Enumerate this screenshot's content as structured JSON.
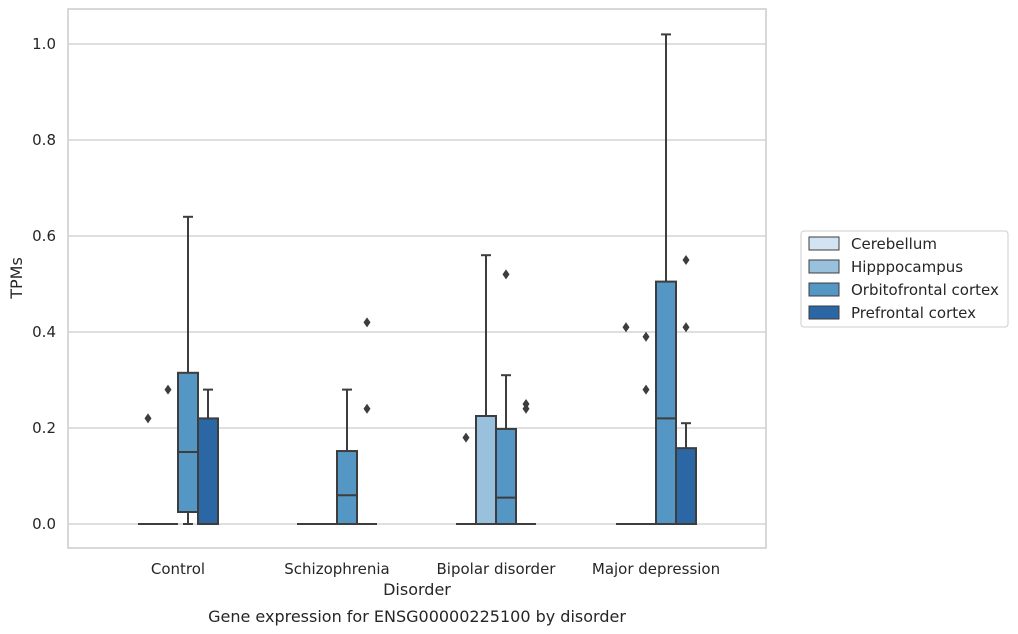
{
  "chart_data": {
    "type": "box",
    "title": "Gene expression for ENSG00000225100 by disorder",
    "xlabel": "Disorder",
    "ylabel": "TPMs",
    "ylim": [
      -0.05,
      1.07
    ],
    "yticks": [
      "0.0",
      "0.2",
      "0.4",
      "0.6",
      "0.8",
      "1.0"
    ],
    "categories": [
      "Control",
      "Schizophrenia",
      "Bipolar disorder",
      "Major depression"
    ],
    "grid": "horizontal",
    "legend_position": "right",
    "series": [
      {
        "name": "Cerebellum",
        "color": "#d4e3f1",
        "boxes": [
          {
            "category": "Control",
            "whisker_low": 0,
            "q1": 0,
            "median": 0,
            "q3": 0,
            "whisker_high": 0,
            "outliers": [
              0.22
            ]
          },
          {
            "category": "Schizophrenia",
            "whisker_low": 0,
            "q1": 0,
            "median": 0,
            "q3": 0,
            "whisker_high": 0,
            "outliers": []
          },
          {
            "category": "Bipolar disorder",
            "whisker_low": 0,
            "q1": 0,
            "median": 0,
            "q3": 0,
            "whisker_high": 0,
            "outliers": [
              0.18
            ]
          },
          {
            "category": "Major depression",
            "whisker_low": 0,
            "q1": 0,
            "median": 0,
            "q3": 0,
            "whisker_high": 0,
            "outliers": [
              0.41
            ]
          }
        ]
      },
      {
        "name": "Hipppocampus",
        "color": "#99c0dc",
        "boxes": [
          {
            "category": "Control",
            "whisker_low": 0,
            "q1": 0,
            "median": 0,
            "q3": 0,
            "whisker_high": 0,
            "outliers": [
              0.28
            ]
          },
          {
            "category": "Schizophrenia",
            "whisker_low": 0,
            "q1": 0,
            "median": 0,
            "q3": 0,
            "whisker_high": 0,
            "outliers": []
          },
          {
            "category": "Bipolar disorder",
            "whisker_low": 0,
            "q1": 0,
            "median": 0,
            "q3": 0.225,
            "whisker_high": 0.56,
            "outliers": []
          },
          {
            "category": "Major depression",
            "whisker_low": 0,
            "q1": 0,
            "median": 0,
            "q3": 0,
            "whisker_high": 0,
            "outliers": [
              0.39,
              0.28
            ]
          }
        ]
      },
      {
        "name": "Orbitofrontal cortex",
        "color": "#5496c4",
        "boxes": [
          {
            "category": "Control",
            "whisker_low": 0,
            "q1": 0.025,
            "median": 0.15,
            "q3": 0.315,
            "whisker_high": 0.64,
            "outliers": []
          },
          {
            "category": "Schizophrenia",
            "whisker_low": 0,
            "q1": 0,
            "median": 0.06,
            "q3": 0.152,
            "whisker_high": 0.28,
            "outliers": []
          },
          {
            "category": "Bipolar disorder",
            "whisker_low": 0,
            "q1": 0,
            "median": 0.055,
            "q3": 0.198,
            "whisker_high": 0.31,
            "outliers": [
              0.52
            ]
          },
          {
            "category": "Major depression",
            "whisker_low": 0,
            "q1": 0,
            "median": 0.22,
            "q3": 0.505,
            "whisker_high": 1.02,
            "outliers": []
          }
        ]
      },
      {
        "name": "Prefrontal cortex",
        "color": "#2b67a4",
        "boxes": [
          {
            "category": "Control",
            "whisker_low": 0,
            "q1": 0,
            "median": 0,
            "q3": 0.22,
            "whisker_high": 0.28,
            "outliers": []
          },
          {
            "category": "Schizophrenia",
            "whisker_low": 0,
            "q1": 0,
            "median": 0,
            "q3": 0,
            "whisker_high": 0,
            "outliers": [
              0.42,
              0.24
            ]
          },
          {
            "category": "Bipolar disorder",
            "whisker_low": 0,
            "q1": 0,
            "median": 0,
            "q3": 0,
            "whisker_high": 0,
            "outliers": [
              0.25,
              0.24
            ]
          },
          {
            "category": "Major depression",
            "whisker_low": 0,
            "q1": 0,
            "median": 0,
            "q3": 0.158,
            "whisker_high": 0.21,
            "outliers": [
              0.55,
              0.41
            ]
          }
        ]
      }
    ]
  }
}
